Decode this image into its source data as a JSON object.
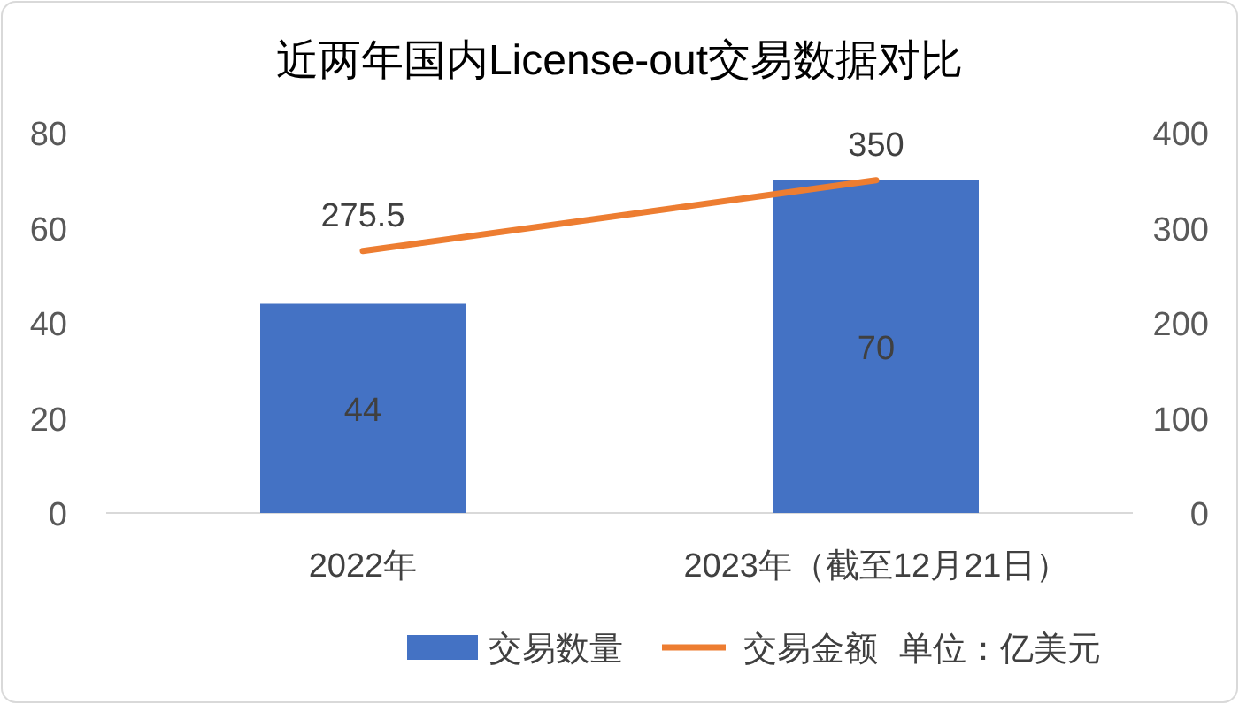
{
  "chart_data": {
    "type": "bar",
    "title": "近两年国内License-out交易数据对比",
    "categories": [
      "2022年",
      "2023年（截至12月21日）"
    ],
    "series": [
      {
        "name": "交易数量",
        "color": "#4472c4",
        "values": [
          44,
          70
        ]
      },
      {
        "name": "交易金额",
        "type": "line",
        "axis": "y2",
        "color": "#ed7d31",
        "values": [
          275.5,
          350
        ]
      }
    ],
    "ylim": [
      0,
      80
    ],
    "yticks": [
      0,
      20,
      40,
      60,
      80
    ],
    "y2lim": [
      0,
      400
    ],
    "y2ticks": [
      0,
      100,
      200,
      300,
      400
    ],
    "data_labels": true,
    "grid": false,
    "legend": "bottom",
    "marker": "none",
    "line_style": "solid",
    "annotations": [
      "单位：亿美元"
    ]
  }
}
